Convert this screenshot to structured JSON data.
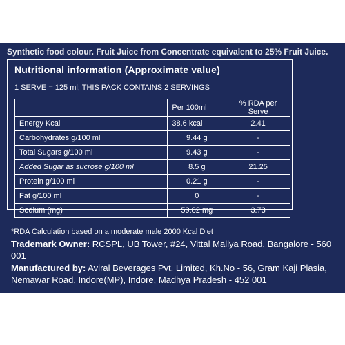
{
  "top_text": "Synthetic food colour. Fruit Juice from Concentrate equivalent to 25% Fruit Juice.",
  "nutrition": {
    "title": "Nutritional information (Approximate value)",
    "serve_line": "1 SERVE = 125 ml; THIS PACK CONTAINS 2 SERVINGS",
    "headers": {
      "name": "",
      "per_100ml": "Per 100ml",
      "rda": "% RDA per Serve"
    },
    "rows": [
      {
        "name": "Energy Kcal",
        "per": "38.6 kcal",
        "rda": "2.41"
      },
      {
        "name": "Carbohydrates g/100 ml",
        "per": "9.44 g",
        "rda": "-"
      },
      {
        "name": "Total Sugars g/100 ml",
        "per": "9.43 g",
        "rda": "-"
      },
      {
        "name": "Added Sugar as sucrose g/100 ml",
        "per": "8.5 g",
        "rda": "21.25"
      },
      {
        "name": "Protein g/100 ml",
        "per": "0.21 g",
        "rda": "-"
      },
      {
        "name": "Fat g/100 ml",
        "per": "0",
        "rda": "-"
      },
      {
        "name": "Sodium (mg)",
        "per": "59.82 mg",
        "rda": "3.73"
      }
    ]
  },
  "rda_note": "*RDA Calculation based on a moderate male 2000 Kcal Diet",
  "trademark": {
    "label": "Trademark Owner:",
    "text": " RCSPL, UB Tower, #24, Vittal Mallya Road, Bangalore - 560 001"
  },
  "manufacturer": {
    "label": "Manufactured by:",
    "text": " Aviral Beverages Pvt. Limited, Kh.No - 56, Gram Kaji Plasia, Nemawar Road, Indore(MP), Indore, Madhya Pradesh - 452 001"
  },
  "colors": {
    "panel": "#1d2a5a",
    "text": "#ffffff",
    "background": "#ffffff"
  }
}
